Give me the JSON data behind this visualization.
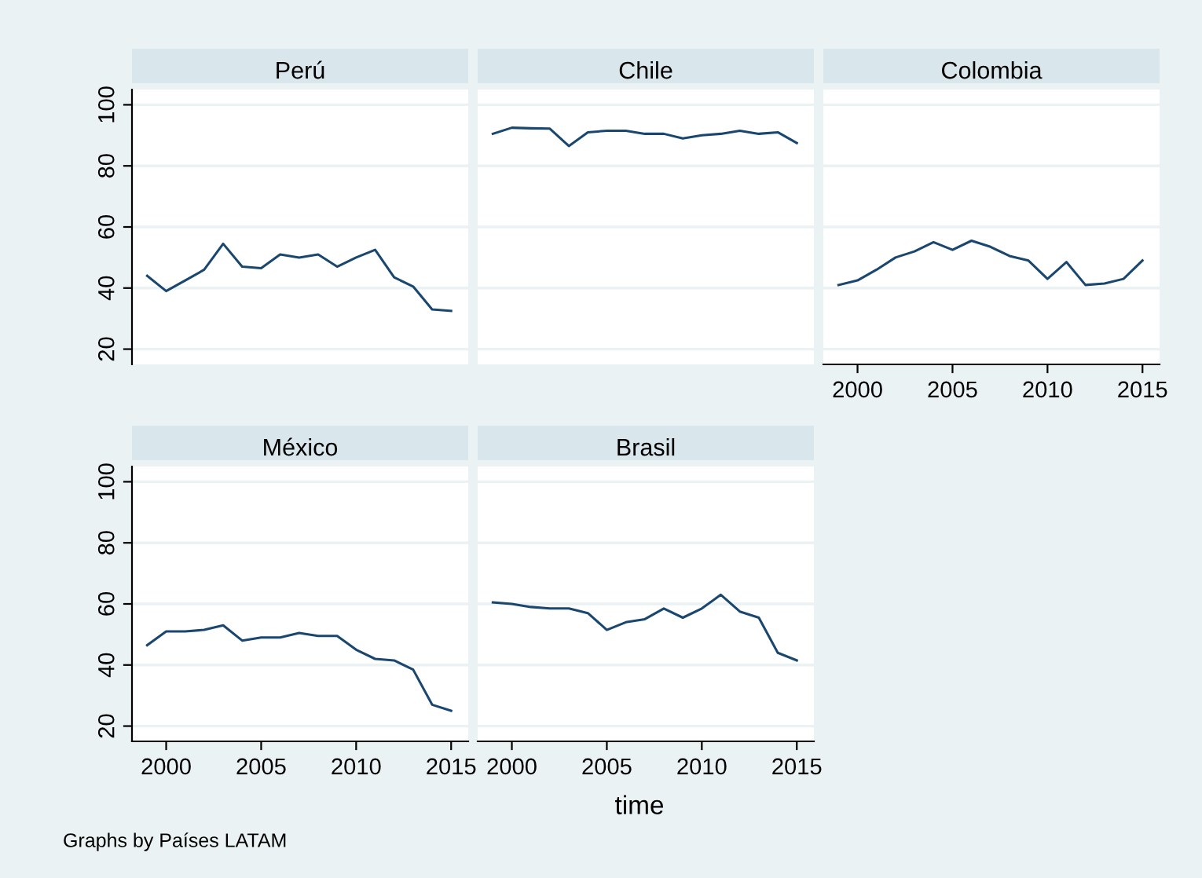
{
  "chart_data": [
    {
      "type": "line",
      "title": "Perú",
      "x": [
        1999,
        2000,
        2001,
        2002,
        2003,
        2004,
        2005,
        2006,
        2007,
        2008,
        2009,
        2010,
        2011,
        2012,
        2013,
        2014,
        2015
      ],
      "series": [
        {
          "color": "#1a476f",
          "values": [
            44,
            39,
            42.5,
            46,
            54.5,
            47,
            46.5,
            51,
            50,
            51,
            47,
            50,
            52.5,
            43.5,
            40.5,
            33,
            32.5
          ]
        }
      ],
      "xlim": [
        1998.2,
        2015.9
      ],
      "ylim": [
        15,
        105
      ],
      "xticks": [
        2000,
        2005,
        2010,
        2015
      ],
      "yticks": [
        20,
        40,
        60,
        80,
        100
      ],
      "grid": "y",
      "tick_labels": "y"
    },
    {
      "type": "line",
      "title": "Chile",
      "x": [
        1999,
        2000,
        2001,
        2002,
        2003,
        2004,
        2005,
        2006,
        2007,
        2008,
        2009,
        2010,
        2011,
        2012,
        2013,
        2014,
        2015
      ],
      "series": [
        {
          "color": "#1a476f",
          "values": [
            90.5,
            92.5,
            92.3,
            92.2,
            86.5,
            91,
            91.5,
            91.5,
            90.5,
            90.5,
            89,
            90,
            90.5,
            91.5,
            90.5,
            91,
            87.5
          ]
        }
      ],
      "xlim": [
        1998.2,
        2015.9
      ],
      "ylim": [
        15,
        105
      ],
      "xticks": [
        2000,
        2005,
        2010,
        2015
      ],
      "yticks": [
        20,
        40,
        60,
        80,
        100
      ],
      "grid": "y",
      "tick_labels": false
    },
    {
      "type": "line",
      "title": "Colombia",
      "x": [
        1999,
        2000,
        2001,
        2002,
        2003,
        2004,
        2005,
        2006,
        2007,
        2008,
        2009,
        2010,
        2011,
        2012,
        2013,
        2014,
        2015
      ],
      "series": [
        {
          "color": "#1a476f",
          "values": [
            41,
            42.5,
            46,
            50,
            52,
            55,
            52.5,
            55.5,
            53.5,
            50.5,
            49,
            43,
            48.5,
            41,
            41.5,
            43,
            49
          ]
        }
      ],
      "xlim": [
        1998.2,
        2015.9
      ],
      "ylim": [
        15,
        105
      ],
      "xticks": [
        2000,
        2005,
        2010,
        2015
      ],
      "yticks": [
        20,
        40,
        60,
        80,
        100
      ],
      "grid": "y",
      "tick_labels": "x"
    },
    {
      "type": "line",
      "title": "México",
      "x": [
        1999,
        2000,
        2001,
        2002,
        2003,
        2004,
        2005,
        2006,
        2007,
        2008,
        2009,
        2010,
        2011,
        2012,
        2013,
        2014,
        2015
      ],
      "series": [
        {
          "color": "#1a476f",
          "values": [
            46.5,
            51,
            51,
            51.5,
            53,
            48,
            49,
            49,
            50.5,
            49.5,
            49.5,
            45,
            42,
            41.5,
            38.5,
            27,
            25
          ]
        }
      ],
      "xlim": [
        1998.2,
        2015.9
      ],
      "ylim": [
        15,
        105
      ],
      "xticks": [
        2000,
        2005,
        2010,
        2015
      ],
      "yticks": [
        20,
        40,
        60,
        80,
        100
      ],
      "grid": "y"
    },
    {
      "type": "line",
      "title": "Brasil",
      "xlabel": "time",
      "annotations": [
        "Graphs by Países LATAM"
      ],
      "x": [
        1999,
        2000,
        2001,
        2002,
        2003,
        2004,
        2005,
        2006,
        2007,
        2008,
        2009,
        2010,
        2011,
        2012,
        2013,
        2014,
        2015
      ],
      "series": [
        {
          "color": "#1a476f",
          "values": [
            60.5,
            60,
            59,
            58.5,
            58.5,
            57,
            51.5,
            54,
            55,
            58.5,
            55.5,
            58.5,
            63,
            57.5,
            55.5,
            44,
            41.5
          ]
        }
      ],
      "xlim": [
        1998.2,
        2015.9
      ],
      "ylim": [
        15,
        105
      ],
      "xticks": [
        2000,
        2005,
        2010,
        2015
      ],
      "yticks": [
        20,
        40,
        60,
        80,
        100
      ],
      "grid": "y",
      "tick_labels": "x"
    }
  ]
}
